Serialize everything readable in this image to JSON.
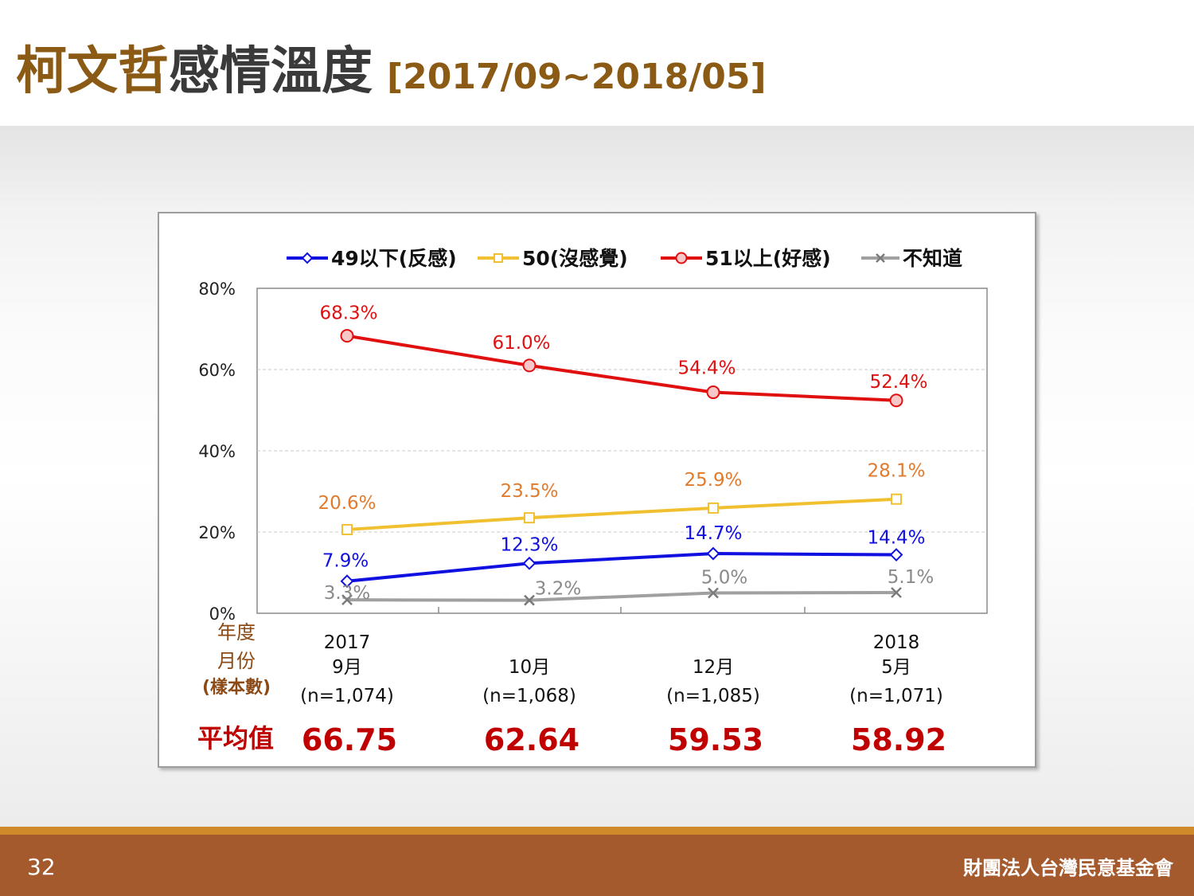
{
  "title": {
    "part1": "柯文哲",
    "part2": "感情溫度",
    "period": "[2017/09~2018/05]"
  },
  "colors": {
    "title_brown": "#8b5a14",
    "footer": "#a55a2e",
    "footer_line": "#d08a2a",
    "avg_red": "#c00000",
    "row_label_brown": "#8b4a16"
  },
  "chart_data": {
    "type": "line",
    "categories": [
      "2017/09",
      "10",
      "12",
      "2018/05"
    ],
    "series": [
      {
        "name": "49以下(反感)",
        "values": [
          7.9,
          12.3,
          14.7,
          14.4
        ],
        "labels": [
          "7.9%",
          "12.3%",
          "14.7%",
          "14.4%"
        ],
        "color": "#1010e0",
        "marker": "diamond"
      },
      {
        "name": "50(沒感覺)",
        "values": [
          20.6,
          23.5,
          25.9,
          28.1
        ],
        "labels": [
          "20.6%",
          "23.5%",
          "25.9%",
          "28.1%"
        ],
        "color": "#f0c030",
        "label_color": "#e07b2e",
        "marker": "square"
      },
      {
        "name": "51以上(好感)",
        "values": [
          68.3,
          61.0,
          54.4,
          52.4
        ],
        "labels": [
          "68.3%",
          "61.0%",
          "54.4%",
          "52.4%"
        ],
        "color": "#e01010",
        "marker": "circle"
      },
      {
        "name": "不知道",
        "values": [
          3.3,
          3.2,
          5.0,
          5.1
        ],
        "labels": [
          "3.3%",
          "3.2%",
          "5.0%",
          "5.1%"
        ],
        "color": "#a0a0a0",
        "marker": "x"
      }
    ],
    "y_ticks": [
      "0%",
      "20%",
      "40%",
      "60%",
      "80%"
    ],
    "ylim": [
      0,
      80
    ],
    "grid": "horizontal dashed",
    "legend": "top"
  },
  "table": {
    "row_labels": [
      "年度",
      "月份",
      "(樣本數)"
    ],
    "columns": [
      {
        "year": "2017",
        "month": "9月",
        "n": "(n=1,074)",
        "avg": "66.75"
      },
      {
        "year": "",
        "month": "10月",
        "n": "(n=1,068)",
        "avg": "62.64"
      },
      {
        "year": "",
        "month": "12月",
        "n": "(n=1,085)",
        "avg": "59.53"
      },
      {
        "year": "2018",
        "month": "5月",
        "n": "(n=1,071)",
        "avg": "58.92"
      }
    ],
    "avg_label": "平均值"
  },
  "footer": {
    "page_number": "32",
    "org_name": "財團法人台灣民意基金會"
  }
}
